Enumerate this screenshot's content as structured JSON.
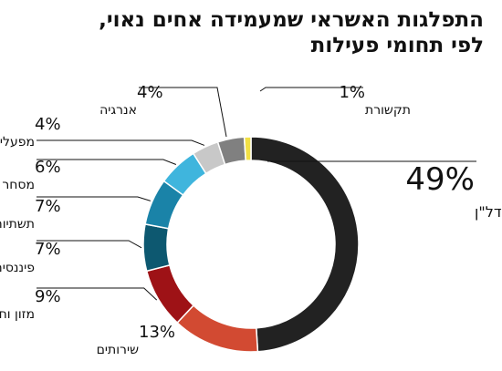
{
  "chart_data": {
    "type": "pie",
    "title_lines": [
      "התפלגות האשראי שמעמידה אחים נאוי,",
      "לפי תחומי פעילות"
    ],
    "slices": [
      {
        "label": "נדל\"ן",
        "value": 49,
        "value_label": "49%",
        "color": "#222222"
      },
      {
        "label": "שירותים",
        "value": 13,
        "value_label": "13%",
        "color": "#d24a32"
      },
      {
        "label": "מזון וחקלאות",
        "value": 9,
        "value_label": "9%",
        "color": "#9e1216"
      },
      {
        "label": "פיננסים",
        "value": 7,
        "value_label": "7%",
        "color": "#0d5870"
      },
      {
        "label": "תשתיות",
        "value": 7,
        "value_label": "7%",
        "color": "#1a83a8"
      },
      {
        "label": "מסחר",
        "value": 6,
        "value_label": "6%",
        "color": "#3fb5dd"
      },
      {
        "label": "מפעלים ותעשייה",
        "value": 4,
        "value_label": "4%",
        "color": "#c8c8c8"
      },
      {
        "label": "אנרגיה",
        "value": 4,
        "value_label": "4%",
        "color": "#808080"
      },
      {
        "label": "תקשורת",
        "value": 1,
        "value_label": "1%",
        "color": "#f2e045"
      }
    ]
  }
}
